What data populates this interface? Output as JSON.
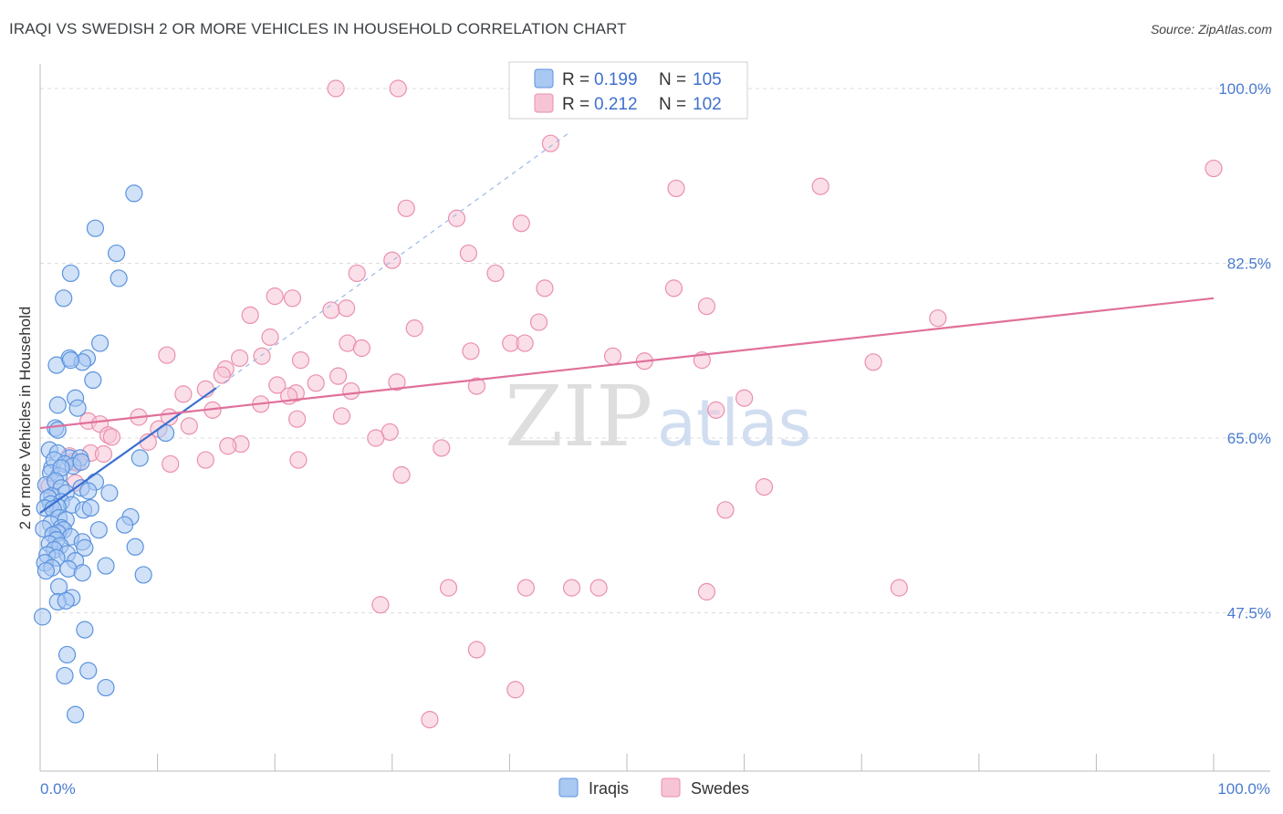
{
  "title": "IRAQI VS SWEDISH 2 OR MORE VEHICLES IN HOUSEHOLD CORRELATION CHART",
  "source": "Source: ZipAtlas.com",
  "watermark": {
    "zip": "ZIP",
    "atlas": "atlas"
  },
  "colors": {
    "iraqi_fill": "#a9c8f2",
    "iraqi_stroke": "#5b93de",
    "iraqi_line": "#3b6fd0",
    "swede_fill": "#f7c4d6",
    "swede_stroke": "#ea8fae",
    "swede_line": "#e0709a",
    "grid": "#dcdcdc",
    "axis_label": "#4a7bd0"
  },
  "legend": {
    "iraqi": {
      "r_label": "R =",
      "r_value": "0.199",
      "n_label": "N =",
      "n_value": "105"
    },
    "swede": {
      "r_label": "R =",
      "r_value": "0.212",
      "n_label": "N =",
      "n_value": "102"
    }
  },
  "bottom_legend": [
    "Iraqis",
    "Swedes"
  ],
  "chart_data": {
    "type": "scatter",
    "title": "IRAQI VS SWEDISH 2 OR MORE VEHICLES IN HOUSEHOLD CORRELATION CHART",
    "xlabel": "",
    "ylabel": "2 or more Vehicles in Household",
    "xlim": [
      0,
      100
    ],
    "ylim": [
      30,
      103
    ],
    "x_tick_labels": [
      "0.0%",
      "100.0%"
    ],
    "y_ticks": [
      47.5,
      65.0,
      82.5,
      100.0
    ],
    "y_tick_labels": [
      "47.5%",
      "65.0%",
      "82.5%",
      "100.0%"
    ],
    "grid": true,
    "legend_position": "top-center",
    "series": [
      {
        "name": "Iraqis",
        "trend": {
          "x": [
            0.0,
            15.0
          ],
          "y": [
            57.5,
            70.0
          ],
          "extended_to": {
            "x": 45.0,
            "y": 95.5
          }
        },
        "points": [
          [
            8.0,
            89.5
          ],
          [
            4.7,
            86.0
          ],
          [
            6.5,
            83.5
          ],
          [
            2.6,
            81.5
          ],
          [
            6.7,
            81.0
          ],
          [
            2.0,
            79.0
          ],
          [
            5.1,
            74.5
          ],
          [
            4.0,
            73.0
          ],
          [
            2.5,
            73.0
          ],
          [
            3.6,
            72.6
          ],
          [
            1.4,
            72.3
          ],
          [
            2.6,
            72.8
          ],
          [
            4.5,
            70.8
          ],
          [
            3.0,
            69.0
          ],
          [
            1.5,
            68.3
          ],
          [
            3.2,
            68.0
          ],
          [
            1.3,
            66.0
          ],
          [
            1.5,
            65.8
          ],
          [
            10.7,
            65.5
          ],
          [
            0.8,
            63.8
          ],
          [
            2.5,
            63.0
          ],
          [
            1.5,
            63.5
          ],
          [
            1.0,
            62.0
          ],
          [
            1.2,
            62.8
          ],
          [
            8.5,
            63.0
          ],
          [
            3.4,
            63.0
          ],
          [
            2.1,
            62.4
          ],
          [
            0.9,
            61.5
          ],
          [
            2.8,
            62.2
          ],
          [
            1.6,
            61.2
          ],
          [
            1.8,
            62.0
          ],
          [
            3.5,
            62.6
          ],
          [
            4.7,
            60.6
          ],
          [
            0.5,
            60.3
          ],
          [
            1.3,
            60.7
          ],
          [
            1.8,
            60.0
          ],
          [
            3.5,
            60.0
          ],
          [
            2.2,
            59.5
          ],
          [
            1.0,
            59.2
          ],
          [
            0.7,
            59.0
          ],
          [
            4.1,
            59.7
          ],
          [
            5.9,
            59.5
          ],
          [
            1.8,
            58.6
          ],
          [
            0.9,
            58.4
          ],
          [
            2.7,
            58.3
          ],
          [
            1.5,
            58.1
          ],
          [
            0.4,
            58.0
          ],
          [
            3.7,
            57.8
          ],
          [
            4.3,
            58.0
          ],
          [
            1.1,
            57.9
          ],
          [
            7.7,
            57.1
          ],
          [
            1.6,
            57.0
          ],
          [
            2.2,
            56.8
          ],
          [
            0.9,
            56.4
          ],
          [
            1.8,
            56.0
          ],
          [
            2.0,
            55.8
          ],
          [
            7.2,
            56.3
          ],
          [
            5.0,
            55.8
          ],
          [
            0.3,
            55.9
          ],
          [
            1.5,
            55.5
          ],
          [
            1.1,
            55.3
          ],
          [
            2.6,
            55.1
          ],
          [
            1.4,
            54.8
          ],
          [
            3.6,
            54.6
          ],
          [
            0.8,
            54.4
          ],
          [
            1.7,
            54.2
          ],
          [
            8.1,
            54.1
          ],
          [
            3.8,
            54.0
          ],
          [
            1.2,
            53.8
          ],
          [
            2.3,
            53.4
          ],
          [
            0.6,
            53.3
          ],
          [
            1.4,
            53.0
          ],
          [
            3.0,
            52.7
          ],
          [
            0.4,
            52.5
          ],
          [
            5.6,
            52.2
          ],
          [
            1.0,
            52.0
          ],
          [
            2.4,
            51.9
          ],
          [
            0.5,
            51.7
          ],
          [
            3.6,
            51.5
          ],
          [
            8.8,
            51.3
          ],
          [
            1.6,
            50.1
          ],
          [
            2.7,
            49.0
          ],
          [
            1.5,
            48.6
          ],
          [
            2.2,
            48.7
          ],
          [
            0.2,
            47.1
          ],
          [
            3.8,
            45.8
          ],
          [
            2.3,
            43.3
          ],
          [
            4.1,
            41.7
          ],
          [
            2.1,
            41.2
          ],
          [
            5.6,
            40.0
          ],
          [
            3.0,
            37.3
          ]
        ]
      },
      {
        "name": "Swedes",
        "trend": {
          "x": [
            0.0,
            100.0
          ],
          "y": [
            66.0,
            79.0
          ]
        },
        "points": [
          [
            25.2,
            100.0
          ],
          [
            30.5,
            100.0
          ],
          [
            43.5,
            94.5
          ],
          [
            100.0,
            92.0
          ],
          [
            54.2,
            90.0
          ],
          [
            66.5,
            90.2
          ],
          [
            31.2,
            88.0
          ],
          [
            35.5,
            87.0
          ],
          [
            41.0,
            86.5
          ],
          [
            36.5,
            83.5
          ],
          [
            30.0,
            82.8
          ],
          [
            27.0,
            81.5
          ],
          [
            38.8,
            81.5
          ],
          [
            54.0,
            80.0
          ],
          [
            43.0,
            80.0
          ],
          [
            20.0,
            79.2
          ],
          [
            21.5,
            79.0
          ],
          [
            24.8,
            77.8
          ],
          [
            26.1,
            78.0
          ],
          [
            17.9,
            77.3
          ],
          [
            56.8,
            78.2
          ],
          [
            42.5,
            76.6
          ],
          [
            31.9,
            76.0
          ],
          [
            76.5,
            77.0
          ],
          [
            19.6,
            75.1
          ],
          [
            26.2,
            74.5
          ],
          [
            40.1,
            74.5
          ],
          [
            41.3,
            74.5
          ],
          [
            27.4,
            74.0
          ],
          [
            36.7,
            73.7
          ],
          [
            18.9,
            73.2
          ],
          [
            56.4,
            72.8
          ],
          [
            48.8,
            73.2
          ],
          [
            10.8,
            73.3
          ],
          [
            17.0,
            73.0
          ],
          [
            22.2,
            72.8
          ],
          [
            51.5,
            72.7
          ],
          [
            71.0,
            72.6
          ],
          [
            15.8,
            71.9
          ],
          [
            25.4,
            71.2
          ],
          [
            15.5,
            71.3
          ],
          [
            23.5,
            70.5
          ],
          [
            20.2,
            70.3
          ],
          [
            30.4,
            70.6
          ],
          [
            37.2,
            70.2
          ],
          [
            14.1,
            69.9
          ],
          [
            21.8,
            69.5
          ],
          [
            26.5,
            69.7
          ],
          [
            12.2,
            69.4
          ],
          [
            21.2,
            69.2
          ],
          [
            60.0,
            69.0
          ],
          [
            18.8,
            68.4
          ],
          [
            14.7,
            67.8
          ],
          [
            57.6,
            67.8
          ],
          [
            11.0,
            67.1
          ],
          [
            8.4,
            67.1
          ],
          [
            21.9,
            66.9
          ],
          [
            25.7,
            67.2
          ],
          [
            4.1,
            66.7
          ],
          [
            5.1,
            66.4
          ],
          [
            12.7,
            66.2
          ],
          [
            10.1,
            65.9
          ],
          [
            29.8,
            65.6
          ],
          [
            5.8,
            65.3
          ],
          [
            28.6,
            65.0
          ],
          [
            6.1,
            65.1
          ],
          [
            9.2,
            64.6
          ],
          [
            17.1,
            64.4
          ],
          [
            16.0,
            64.2
          ],
          [
            34.2,
            64.0
          ],
          [
            4.3,
            63.5
          ],
          [
            5.4,
            63.4
          ],
          [
            2.5,
            63.2
          ],
          [
            2.8,
            62.6
          ],
          [
            11.1,
            62.4
          ],
          [
            14.1,
            62.8
          ],
          [
            22.0,
            62.8
          ],
          [
            3.2,
            62.5
          ],
          [
            30.8,
            61.3
          ],
          [
            3.0,
            60.5
          ],
          [
            61.7,
            60.1
          ],
          [
            58.4,
            57.8
          ],
          [
            0.8,
            60.2
          ],
          [
            34.8,
            50.0
          ],
          [
            41.4,
            50.0
          ],
          [
            45.3,
            50.0
          ],
          [
            47.6,
            50.0
          ],
          [
            56.8,
            49.6
          ],
          [
            73.2,
            50.0
          ],
          [
            29.0,
            48.3
          ],
          [
            37.2,
            43.8
          ],
          [
            40.5,
            39.8
          ],
          [
            33.2,
            36.8
          ]
        ]
      }
    ]
  }
}
